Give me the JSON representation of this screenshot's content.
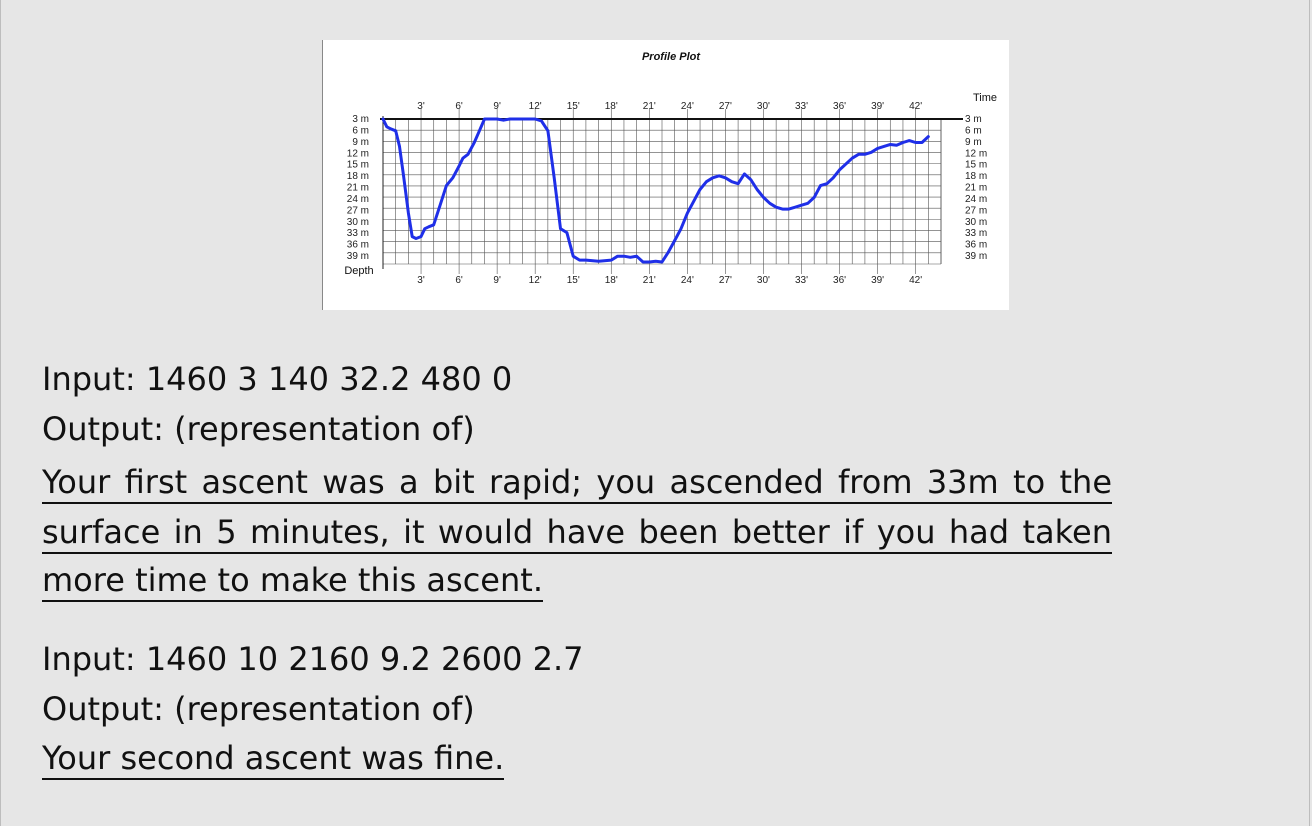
{
  "chart_data": {
    "type": "line",
    "title": "Profile Plot",
    "xlabel": "Time",
    "ylabel": "Depth",
    "x_tick_labels": [
      "3'",
      "6'",
      "9'",
      "12'",
      "15'",
      "18'",
      "21'",
      "24'",
      "27'",
      "30'",
      "33'",
      "36'",
      "39'",
      "42'"
    ],
    "y_tick_labels": [
      "3 m",
      "6 m",
      "9 m",
      "12 m",
      "15 m",
      "18 m",
      "21 m",
      "24 m",
      "27 m",
      "30 m",
      "33 m",
      "36 m",
      "39 m"
    ],
    "xlim": [
      0,
      44
    ],
    "ylim": [
      3,
      40
    ],
    "y_inverted": true,
    "grid": true,
    "series_color": "#1f2fe8",
    "series": [
      {
        "x": [
          0,
          0.3,
          0.6,
          1.0,
          1.3,
          1.6,
          2.0,
          2.3,
          2.6,
          3.0,
          3.3,
          3.6,
          4.0,
          4.5,
          5.0,
          5.5,
          6.0,
          6.3,
          6.7,
          7.2,
          7.6,
          8.0,
          9.0,
          9.5,
          10.0,
          11.0,
          12.0,
          12.5,
          13.0,
          13.5,
          14.0,
          14.5,
          15.0,
          15.5,
          16.0,
          17.0,
          18.0,
          18.5,
          19.0,
          19.5,
          20.0,
          20.5,
          21.0,
          21.5,
          22.0,
          22.5,
          23.0,
          23.5,
          24.0,
          24.5,
          25.0,
          25.5,
          26.0,
          26.5,
          27.0,
          27.5,
          28.0,
          28.5,
          29.0,
          29.5,
          30.0,
          30.5,
          31.0,
          31.5,
          32.0,
          32.5,
          33.0,
          33.5,
          34.0,
          34.5,
          35.0,
          35.5,
          36.0,
          37.0,
          37.5,
          38.0,
          38.5,
          39.0,
          39.5,
          40.0,
          40.5,
          41.0,
          41.5,
          42.0,
          42.5,
          43.0
        ],
        "y": [
          3,
          5,
          5.5,
          6,
          10,
          17,
          27,
          33,
          33.5,
          33,
          31,
          30.5,
          30,
          25,
          20,
          18,
          15,
          13,
          12,
          9,
          6,
          3,
          3,
          3.3,
          3,
          3,
          3,
          3.5,
          6,
          18,
          31,
          32,
          38,
          39,
          39,
          39.3,
          39,
          38,
          38,
          38.3,
          38,
          39.5,
          39.5,
          39.3,
          39.5,
          37,
          34,
          31,
          27,
          24,
          21,
          19,
          18,
          17.5,
          18,
          19,
          19.5,
          17,
          18.5,
          21,
          23,
          24.5,
          25.5,
          26,
          26,
          25.5,
          25,
          24.5,
          23,
          20,
          19.5,
          18,
          16,
          13,
          12,
          12,
          11.5,
          10.5,
          10,
          9.5,
          9.7,
          9,
          8.5,
          9,
          9,
          7.5
        ]
      }
    ]
  },
  "text": {
    "ex1_input": "Input: 1460 3 140 32.2 480 0",
    "ex1_output": "Output: (representation of)",
    "ex1_result_line1": "Your first ascent was a bit rapid; you ascended from 33m to the",
    "ex1_result_line2": "surface in 5 minutes, it would have been better if you had taken",
    "ex1_result_line3": "more time to make this ascent.",
    "ex2_input": "Input: 1460 10 2160 9.2 2600 2.7",
    "ex2_output": "Output: (representation of)",
    "ex2_result": "Your second ascent was fine."
  }
}
